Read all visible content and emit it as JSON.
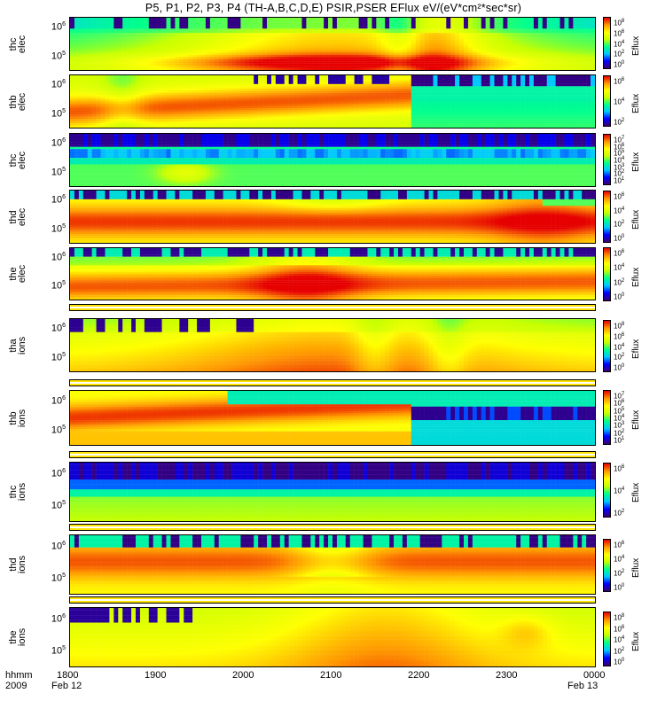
{
  "title": "P5, P1, P2, P3, P4 (TH-A,B,C,D,E) PSIR,PSER EFlux eV/(eV*cm²*sec*sr)",
  "colorbar_unit": "Eflux",
  "x_axis": {
    "row_label": "hhmm",
    "year_label": "2009",
    "ticks": [
      "1800",
      "1900",
      "2000",
      "2100",
      "2200",
      "2300",
      "0000"
    ],
    "start_date": "Feb 12",
    "end_date": "Feb 13"
  },
  "colors": {
    "colormap": [
      "#3b0070",
      "#0000ff",
      "#00c8ff",
      "#00ff8c",
      "#c8ff00",
      "#ffff00",
      "#ff9600",
      "#e60000"
    ],
    "strip": "#ffe400"
  },
  "panels": [
    {
      "probe": "thc",
      "species": "elec"
    },
    {
      "probe": "thb",
      "species": "elec"
    },
    {
      "probe": "thc",
      "species": "elec"
    },
    {
      "probe": "thd",
      "species": "elec"
    },
    {
      "probe": "the",
      "species": "elec"
    },
    {
      "probe": "tha",
      "species": "ions"
    },
    {
      "probe": "thb",
      "species": "ions"
    },
    {
      "probe": "thc",
      "species": "ions"
    },
    {
      "probe": "thd",
      "species": "ions"
    },
    {
      "probe": "the",
      "species": "ions"
    }
  ],
  "chart_data": {
    "type": "heatmap",
    "title": "P5, P1, P2, P3, P4 (TH-A,B,C,D,E) PSIR,PSER EFlux eV/(eV*cm²*sec*sr)",
    "x_range": [
      "2009-02-12 18:00",
      "2009-02-13 00:00"
    ],
    "x_ticks": [
      "1800",
      "1900",
      "2000",
      "2100",
      "2200",
      "2300",
      "0000"
    ],
    "colorbar_label": "Eflux",
    "panels": [
      {
        "name": "thc elec",
        "y_ticks_exp": [
          6,
          5
        ],
        "colorbar_ticks_exp": [
          8,
          6,
          4,
          2,
          0
        ]
      },
      {
        "name": "thb elec",
        "y_ticks_exp": [
          6,
          5
        ],
        "colorbar_ticks_exp": [
          6,
          4,
          2
        ]
      },
      {
        "name": "thc elec",
        "y_ticks_exp": [
          6,
          5
        ],
        "colorbar_ticks_exp": [
          7,
          6,
          5,
          4,
          3,
          2,
          1
        ]
      },
      {
        "name": "thd elec",
        "y_ticks_exp": [
          6,
          5
        ],
        "colorbar_ticks_exp": [
          6,
          4,
          2,
          0
        ]
      },
      {
        "name": "the elec",
        "y_ticks_exp": [
          6,
          5
        ],
        "colorbar_ticks_exp": [
          6,
          4,
          2,
          0
        ]
      },
      {
        "name": "tha ions",
        "y_ticks_exp": [
          6,
          5
        ],
        "colorbar_ticks_exp": [
          8,
          6,
          4,
          2,
          0
        ]
      },
      {
        "name": "thb ions",
        "y_ticks_exp": [
          6,
          5
        ],
        "colorbar_ticks_exp": [
          7,
          6,
          5,
          4,
          3,
          2,
          1
        ]
      },
      {
        "name": "thc ions",
        "y_ticks_exp": [
          6,
          5
        ],
        "colorbar_ticks_exp": [
          6,
          4,
          2
        ]
      },
      {
        "name": "thd ions",
        "y_ticks_exp": [
          6,
          5
        ],
        "colorbar_ticks_exp": [
          6,
          4,
          2,
          0
        ]
      },
      {
        "name": "the ions",
        "y_ticks_exp": [
          6,
          5
        ],
        "colorbar_ticks_exp": [
          8,
          6,
          4,
          2,
          0
        ]
      }
    ]
  }
}
